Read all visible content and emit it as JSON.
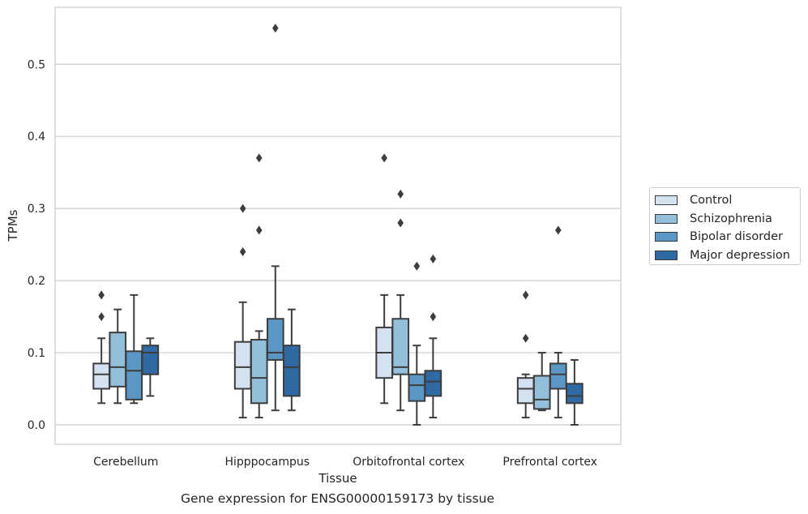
{
  "chart_data": {
    "type": "box",
    "title": "",
    "xlabel": "Tissue",
    "ylabel": "TPMs",
    "ylim": [
      -0.027,
      0.579
    ],
    "yticks": [
      "0.0",
      "0.1",
      "0.2",
      "0.3",
      "0.4",
      "0.5"
    ],
    "categories": [
      "Cerebellum",
      "Hipppocampus",
      "Orbitofrontal cortex",
      "Prefrontal cortex"
    ],
    "grid": true,
    "legend_position": "right",
    "series": [
      {
        "name": "Control",
        "color": "#d3e1f0",
        "boxes": [
          {
            "whislo": 0.03,
            "q1": 0.05,
            "med": 0.07,
            "q3": 0.085,
            "whishi": 0.12,
            "fliers": [
              0.15,
              0.18
            ]
          },
          {
            "whislo": 0.01,
            "q1": 0.05,
            "med": 0.08,
            "q3": 0.115,
            "whishi": 0.17,
            "fliers": [
              0.24,
              0.3
            ]
          },
          {
            "whislo": 0.03,
            "q1": 0.065,
            "med": 0.1,
            "q3": 0.135,
            "whishi": 0.18,
            "fliers": [
              0.37
            ]
          },
          {
            "whislo": 0.01,
            "q1": 0.03,
            "med": 0.05,
            "q3": 0.065,
            "whishi": 0.07,
            "fliers": [
              0.12,
              0.18
            ]
          }
        ]
      },
      {
        "name": "Schizophrenia",
        "color": "#94bfdb",
        "boxes": [
          {
            "whislo": 0.03,
            "q1": 0.053,
            "med": 0.08,
            "q3": 0.128,
            "whishi": 0.16,
            "fliers": []
          },
          {
            "whislo": 0.01,
            "q1": 0.03,
            "med": 0.065,
            "q3": 0.118,
            "whishi": 0.13,
            "fliers": [
              0.27,
              0.37
            ]
          },
          {
            "whislo": 0.02,
            "q1": 0.07,
            "med": 0.08,
            "q3": 0.147,
            "whishi": 0.18,
            "fliers": [
              0.28,
              0.32
            ]
          },
          {
            "whislo": 0.02,
            "q1": 0.022,
            "med": 0.035,
            "q3": 0.068,
            "whishi": 0.1,
            "fliers": []
          }
        ]
      },
      {
        "name": "Bipolar disorder",
        "color": "#5a97c5",
        "boxes": [
          {
            "whislo": 0.03,
            "q1": 0.035,
            "med": 0.075,
            "q3": 0.102,
            "whishi": 0.18,
            "fliers": []
          },
          {
            "whislo": 0.02,
            "q1": 0.09,
            "med": 0.1,
            "q3": 0.147,
            "whishi": 0.22,
            "fliers": [
              0.55
            ]
          },
          {
            "whislo": 0.0,
            "q1": 0.033,
            "med": 0.055,
            "q3": 0.07,
            "whishi": 0.11,
            "fliers": [
              0.22
            ]
          },
          {
            "whislo": 0.01,
            "q1": 0.05,
            "med": 0.07,
            "q3": 0.085,
            "whishi": 0.1,
            "fliers": [
              0.27
            ]
          }
        ]
      },
      {
        "name": "Major depression",
        "color": "#2f6aa5",
        "boxes": [
          {
            "whislo": 0.04,
            "q1": 0.07,
            "med": 0.1,
            "q3": 0.11,
            "whishi": 0.12,
            "fliers": []
          },
          {
            "whislo": 0.02,
            "q1": 0.04,
            "med": 0.08,
            "q3": 0.11,
            "whishi": 0.16,
            "fliers": []
          },
          {
            "whislo": 0.01,
            "q1": 0.04,
            "med": 0.06,
            "q3": 0.075,
            "whishi": 0.12,
            "fliers": [
              0.15,
              0.23
            ]
          },
          {
            "whislo": 0.0,
            "q1": 0.03,
            "med": 0.04,
            "q3": 0.057,
            "whishi": 0.09,
            "fliers": []
          }
        ]
      }
    ]
  },
  "caption": "Gene expression for ENSG00000159173 by tissue"
}
